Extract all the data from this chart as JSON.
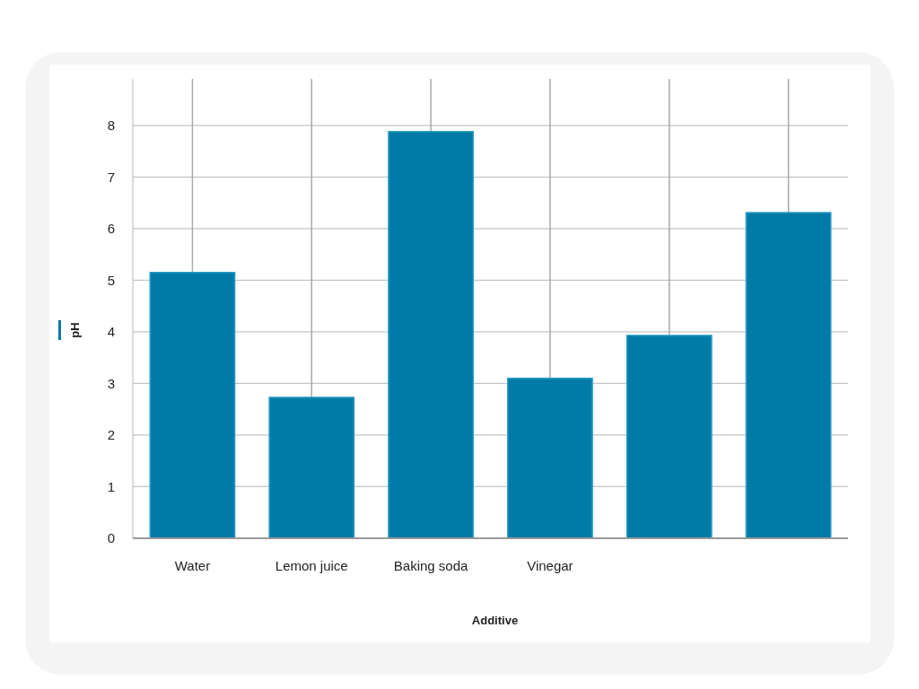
{
  "chart_data": {
    "type": "bar",
    "xlabel": "Additive",
    "ylabel": "pH",
    "categories": [
      "Water",
      "Lemon juice",
      "Baking soda",
      "Vinegar",
      null,
      null
    ],
    "values": [
      5.15,
      2.73,
      7.88,
      3.1,
      3.93,
      6.31
    ],
    "color": "#007ba7",
    "ylim": [
      0,
      8.9
    ],
    "yticks": [
      0,
      1,
      2,
      3,
      4,
      5,
      6,
      7,
      8
    ],
    "grid": true
  }
}
